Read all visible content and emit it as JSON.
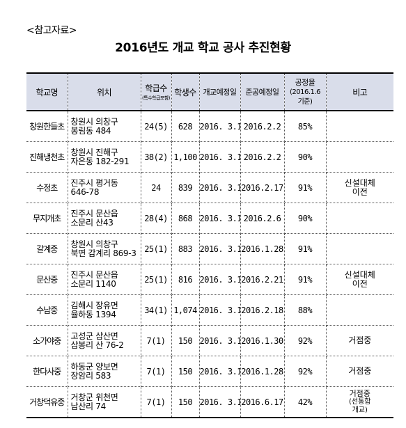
{
  "ref_tag": "<참고자료>",
  "title": "2016년도 개교 학교 공사 추진현황",
  "headers": {
    "school": "학교명",
    "location": "위치",
    "classes": "학급수",
    "classes_sub": "(특수학급포함)",
    "students": "학생수",
    "open_plan": "개교예정일",
    "complete_plan": "준공예정일",
    "progress_1": "공정율",
    "progress_2": "(2016.1.6",
    "progress_3": "기준)",
    "note": "비고"
  },
  "rows": [
    {
      "school": "창원한들초",
      "loc1": "창원시 의창구",
      "loc2": "봉림동 484",
      "classes": "24(5)",
      "students": "628",
      "open": "2016. 3.1",
      "complete": "2016.2.2",
      "progress": "85%",
      "note1": "",
      "note2": "",
      "note3": ""
    },
    {
      "school": "진해냉천초",
      "loc1": "창원시 진해구",
      "loc2": "자은동 182-291",
      "classes": "38(2)",
      "students": "1,100",
      "open": "2016. 3.1",
      "complete": "2016.2.2",
      "progress": "90%",
      "note1": "",
      "note2": "",
      "note3": ""
    },
    {
      "school": "수정초",
      "loc1": "진주시 평거동",
      "loc2": "646-78",
      "classes": "24",
      "students": "839",
      "open": "2016. 3.1",
      "complete": "2016.2.17",
      "progress": "91%",
      "note1": "신설대체",
      "note2": "이전",
      "note3": ""
    },
    {
      "school": "무지개초",
      "loc1": "진주시 문산읍",
      "loc2": "소문리 산43",
      "classes": "28(4)",
      "students": "868",
      "open": "2016. 3.1",
      "complete": "2016.2.6",
      "progress": "90%",
      "note1": "",
      "note2": "",
      "note3": ""
    },
    {
      "school": "갈계중",
      "loc1": "창원시 의창구",
      "loc2": "북면 감계리 869-3",
      "classes": "25(1)",
      "students": "883",
      "open": "2016. 3.1",
      "complete": "2016.1.28",
      "progress": "91%",
      "note1": "",
      "note2": "",
      "note3": ""
    },
    {
      "school": "문산중",
      "loc1": "진주시 문산읍",
      "loc2": "소문리 1140",
      "classes": "25(1)",
      "students": "816",
      "open": "2016. 3.1",
      "complete": "2016.2.21",
      "progress": "91%",
      "note1": "신설대체",
      "note2": "이전",
      "note3": ""
    },
    {
      "school": "수남중",
      "loc1": "김해시 장유면",
      "loc2": "율하동 1394",
      "classes": "34(1)",
      "students": "1,074",
      "open": "2016. 3.1",
      "complete": "2016.2.18",
      "progress": "88%",
      "note1": "",
      "note2": "",
      "note3": ""
    },
    {
      "school": "소가야중",
      "loc1": "고성군 삼산면",
      "loc2": "삼봉리 산 76-2",
      "classes": "7(1)",
      "students": "150",
      "open": "2016. 3.1",
      "complete": "2016.1.30",
      "progress": "92%",
      "note1": "거점중",
      "note2": "",
      "note3": ""
    },
    {
      "school": "한다사중",
      "loc1": "하동군 양보면",
      "loc2": "장암리 583",
      "classes": "7(1)",
      "students": "150",
      "open": "2016. 3.1",
      "complete": "2016.1.28",
      "progress": "92%",
      "note1": "거점중",
      "note2": "",
      "note3": ""
    },
    {
      "school": "거창덕유중",
      "loc1": "거창군 위천면",
      "loc2": "남산리 74",
      "classes": "7(1)",
      "students": "150",
      "open": "2016. 3.1",
      "complete": "2016.6.17",
      "progress": "42%",
      "note1": "거점중",
      "note2": "(선통합",
      "note3": "개교)"
    }
  ]
}
